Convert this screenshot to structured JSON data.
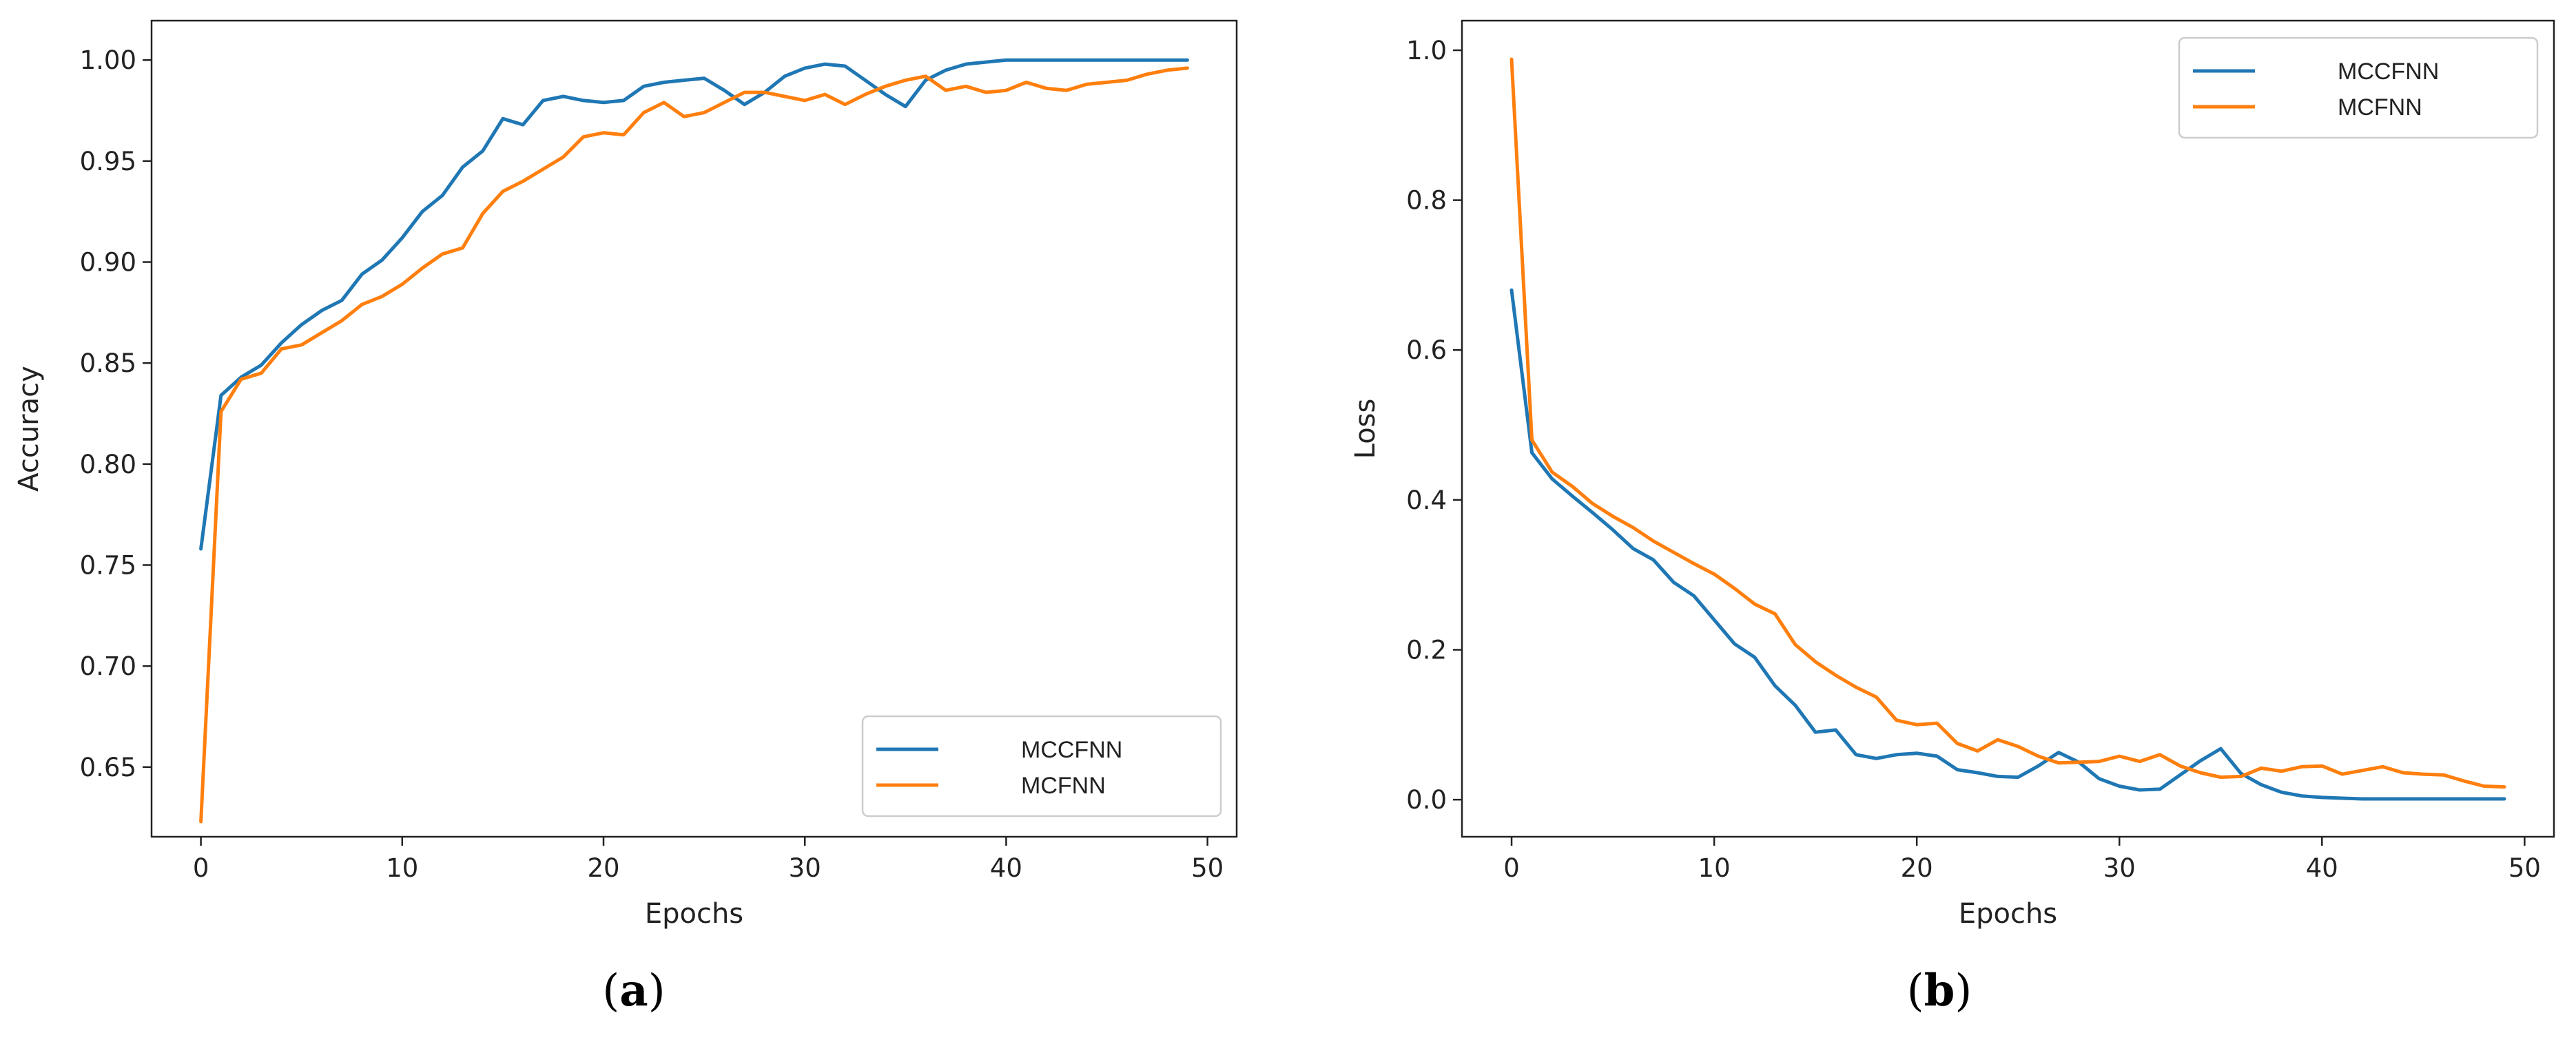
{
  "figure": {
    "colors": {
      "series_a": "#1f77b4",
      "series_b": "#ff7f0e",
      "frame": "#222222",
      "legend_frame": "#cccccc"
    }
  },
  "chart_data": [
    {
      "type": "line",
      "panel": "a",
      "caption_open": "(",
      "caption_letter": "a",
      "caption_close": ")",
      "xlabel": "Epochs",
      "ylabel": "Accuracy",
      "xlim": [
        -2.45,
        51.45
      ],
      "ylim": [
        0.6155,
        1.0195
      ],
      "xticks": [
        0,
        10,
        20,
        30,
        40,
        50
      ],
      "yticks": [
        0.65,
        0.7,
        0.75,
        0.8,
        0.85,
        0.9,
        0.95,
        1.0
      ],
      "ytick_labels": [
        "0.65",
        "0.70",
        "0.75",
        "0.80",
        "0.85",
        "0.90",
        "0.95",
        "1.00"
      ],
      "xtick_labels": [
        "0",
        "10",
        "20",
        "30",
        "40",
        "50"
      ],
      "legend_position": "lower-right",
      "x": [
        0,
        1,
        2,
        3,
        4,
        5,
        6,
        7,
        8,
        9,
        10,
        11,
        12,
        13,
        14,
        15,
        16,
        17,
        18,
        19,
        20,
        21,
        22,
        23,
        24,
        25,
        26,
        27,
        28,
        29,
        30,
        31,
        32,
        33,
        34,
        35,
        36,
        37,
        38,
        39,
        40,
        41,
        42,
        43,
        44,
        45,
        46,
        47,
        48,
        49
      ],
      "series": [
        {
          "name": "MCCFNN",
          "color": "#1f77b4",
          "values": [
            0.758,
            0.834,
            0.843,
            0.849,
            0.86,
            0.869,
            0.876,
            0.881,
            0.894,
            0.901,
            0.912,
            0.925,
            0.933,
            0.947,
            0.955,
            0.971,
            0.968,
            0.98,
            0.982,
            0.98,
            0.979,
            0.98,
            0.987,
            0.989,
            0.99,
            0.991,
            0.985,
            0.978,
            0.984,
            0.992,
            0.996,
            0.998,
            0.997,
            0.99,
            0.983,
            0.977,
            0.99,
            0.995,
            0.998,
            0.999,
            1.0,
            1.0,
            1.0,
            1.0,
            1.0,
            1.0,
            1.0,
            1.0,
            1.0,
            1.0
          ]
        },
        {
          "name": "MCFNN",
          "color": "#ff7f0e",
          "values": [
            0.623,
            0.826,
            0.842,
            0.845,
            0.857,
            0.859,
            0.865,
            0.871,
            0.879,
            0.883,
            0.889,
            0.897,
            0.904,
            0.907,
            0.924,
            0.935,
            0.94,
            0.946,
            0.952,
            0.962,
            0.964,
            0.963,
            0.974,
            0.979,
            0.972,
            0.974,
            0.979,
            0.984,
            0.984,
            0.982,
            0.98,
            0.983,
            0.978,
            0.983,
            0.987,
            0.99,
            0.992,
            0.985,
            0.987,
            0.984,
            0.985,
            0.989,
            0.986,
            0.985,
            0.988,
            0.989,
            0.99,
            0.993,
            0.995,
            0.996
          ]
        }
      ]
    },
    {
      "type": "line",
      "panel": "b",
      "caption_open": "(",
      "caption_letter": "b",
      "caption_close": ")",
      "xlabel": "Epochs",
      "ylabel": "Loss",
      "xlim": [
        -2.45,
        51.45
      ],
      "ylim": [
        -0.0495,
        1.0395
      ],
      "xticks": [
        0,
        10,
        20,
        30,
        40,
        50
      ],
      "yticks": [
        0.0,
        0.2,
        0.4,
        0.6,
        0.8,
        1.0
      ],
      "ytick_labels": [
        "0.0",
        "0.2",
        "0.4",
        "0.6",
        "0.8",
        "1.0"
      ],
      "xtick_labels": [
        "0",
        "10",
        "20",
        "30",
        "40",
        "50"
      ],
      "legend_position": "upper-right",
      "x": [
        0,
        1,
        2,
        3,
        4,
        5,
        6,
        7,
        8,
        9,
        10,
        11,
        12,
        13,
        14,
        15,
        16,
        17,
        18,
        19,
        20,
        21,
        22,
        23,
        24,
        25,
        26,
        27,
        28,
        29,
        30,
        31,
        32,
        33,
        34,
        35,
        36,
        37,
        38,
        39,
        40,
        41,
        42,
        43,
        44,
        45,
        46,
        47,
        48,
        49
      ],
      "series": [
        {
          "name": "MCCFNN",
          "color": "#1f77b4",
          "values": [
            0.68,
            0.463,
            0.428,
            0.405,
            0.383,
            0.36,
            0.335,
            0.32,
            0.29,
            0.272,
            0.24,
            0.208,
            0.19,
            0.152,
            0.126,
            0.09,
            0.093,
            0.06,
            0.055,
            0.06,
            0.062,
            0.058,
            0.04,
            0.036,
            0.031,
            0.03,
            0.045,
            0.063,
            0.05,
            0.028,
            0.018,
            0.013,
            0.014,
            0.033,
            0.052,
            0.068,
            0.035,
            0.02,
            0.01,
            0.005,
            0.003,
            0.002,
            0.001,
            0.001,
            0.001,
            0.001,
            0.001,
            0.001,
            0.001,
            0.001
          ]
        },
        {
          "name": "MCFNN",
          "color": "#ff7f0e",
          "values": [
            0.988,
            0.48,
            0.437,
            0.418,
            0.395,
            0.378,
            0.363,
            0.345,
            0.33,
            0.315,
            0.301,
            0.282,
            0.261,
            0.248,
            0.207,
            0.184,
            0.166,
            0.15,
            0.137,
            0.106,
            0.1,
            0.102,
            0.075,
            0.065,
            0.08,
            0.071,
            0.058,
            0.049,
            0.05,
            0.051,
            0.058,
            0.051,
            0.06,
            0.045,
            0.036,
            0.03,
            0.031,
            0.042,
            0.038,
            0.044,
            0.045,
            0.034,
            0.039,
            0.044,
            0.036,
            0.034,
            0.033,
            0.025,
            0.018,
            0.017
          ]
        }
      ]
    }
  ]
}
